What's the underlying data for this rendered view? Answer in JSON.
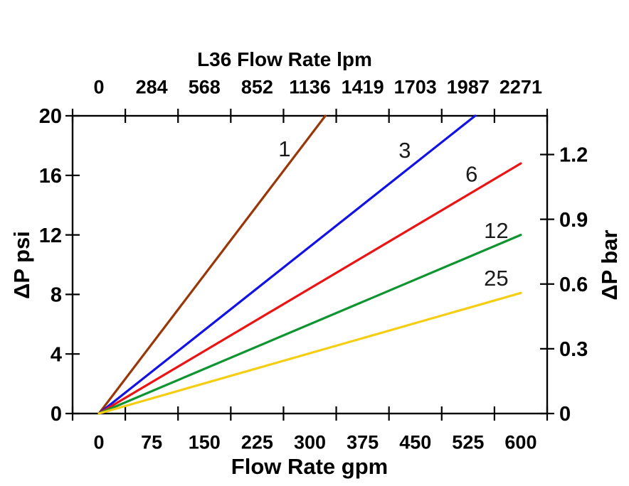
{
  "chart_data": {
    "type": "line",
    "background": "#ffffff",
    "axis_color": "#000000",
    "text_color": "#000000",
    "top_axis": {
      "title": "L36  Flow Rate lpm",
      "tick_labels": [
        "0",
        "284",
        "568",
        "852",
        "1136",
        "1419",
        "1703",
        "1987",
        "2271"
      ]
    },
    "bottom_axis": {
      "title": "Flow Rate gpm",
      "min": 0,
      "max": 600,
      "tick_labels": [
        "0",
        "75",
        "150",
        "225",
        "300",
        "375",
        "450",
        "525",
        "600"
      ]
    },
    "left_axis": {
      "title": "ΔP psi",
      "min": 0,
      "max": 20,
      "tick_labels": [
        "0",
        "4",
        "8",
        "12",
        "16",
        "20"
      ]
    },
    "right_axis": {
      "title": "ΔP bar",
      "tick_labels": [
        "0",
        "0.3",
        "0.6",
        "0.9",
        "1.2"
      ],
      "psi_per_bar": 14.5
    },
    "series": [
      {
        "label": "1",
        "color": "#9a3708",
        "points_gpm_psi": [
          [
            0,
            0
          ],
          [
            322,
            20
          ]
        ],
        "label_pos_gpm_psi": [
          264,
          17.8
        ]
      },
      {
        "label": "3",
        "color": "#1212e6",
        "points_gpm_psi": [
          [
            0,
            0
          ],
          [
            535,
            20
          ]
        ],
        "label_pos_gpm_psi": [
          435,
          17.7
        ]
      },
      {
        "label": "6",
        "color": "#ea1414",
        "points_gpm_psi": [
          [
            0,
            0
          ],
          [
            600,
            16.8
          ]
        ],
        "label_pos_gpm_psi": [
          530,
          16.1
        ]
      },
      {
        "label": "12",
        "color": "#0e9430",
        "points_gpm_psi": [
          [
            0,
            0
          ],
          [
            600,
            12.0
          ]
        ],
        "label_pos_gpm_psi": [
          565,
          12.3
        ]
      },
      {
        "label": "25",
        "color": "#f5ce14",
        "points_gpm_psi": [
          [
            0,
            0
          ],
          [
            600,
            8.1
          ]
        ],
        "label_pos_gpm_psi": [
          565,
          9.1
        ]
      }
    ]
  }
}
